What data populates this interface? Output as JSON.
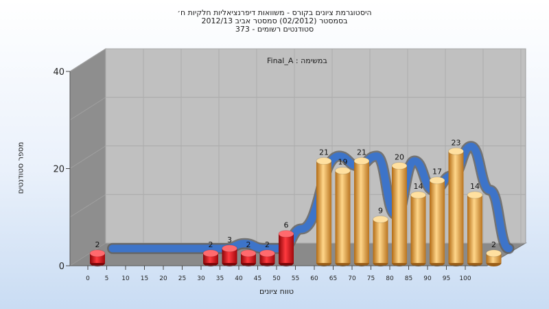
{
  "titles": {
    "line1": "היסטוגרמת ציונים בקורס - משוואות דיפרנציאליות חלקיות ח׳",
    "line2": "בסמסטר  (02/2012)  סמסטר אביב 2012/13",
    "line3": "373 - סטודנטים רשומים"
  },
  "chart_data": {
    "type": "bar",
    "annotation": "Final_A : במשימה",
    "xlabel": "טווח ציונים",
    "ylabel": "מספר סטודנטים",
    "ylim": [
      0,
      40
    ],
    "yticks": [
      0,
      20,
      40
    ],
    "xticks": [
      0,
      5,
      10,
      15,
      20,
      25,
      30,
      35,
      40,
      45,
      50,
      55,
      60,
      65,
      70,
      75,
      80,
      85,
      90,
      95,
      100
    ],
    "grid": true,
    "bars": [
      {
        "x": 0,
        "value": 2,
        "color": "red"
      },
      {
        "x": 30,
        "value": 2,
        "color": "red"
      },
      {
        "x": 35,
        "value": 3,
        "color": "red"
      },
      {
        "x": 40,
        "value": 2,
        "color": "red"
      },
      {
        "x": 45,
        "value": 2,
        "color": "red"
      },
      {
        "x": 50,
        "value": 6,
        "color": "red"
      },
      {
        "x": 60,
        "value": 21,
        "color": "orange"
      },
      {
        "x": 65,
        "value": 19,
        "color": "orange"
      },
      {
        "x": 70,
        "value": 21,
        "color": "orange"
      },
      {
        "x": 75,
        "value": 9,
        "color": "orange"
      },
      {
        "x": 80,
        "value": 20,
        "color": "orange"
      },
      {
        "x": 85,
        "value": 14,
        "color": "orange"
      },
      {
        "x": 90,
        "value": 17,
        "color": "orange"
      },
      {
        "x": 95,
        "value": 23,
        "color": "orange"
      },
      {
        "x": 100,
        "value": 14,
        "color": "orange"
      },
      {
        "x": 105,
        "value": 2,
        "color": "orange"
      }
    ],
    "colors": {
      "red_bar": "#e0121b",
      "orange_bar": "#f0b24a",
      "trend_line": "#3d74c9",
      "left_wall": "#8e8e8e",
      "back_wall": "#c0c0c0",
      "floor": "#8a8a8a"
    }
  }
}
